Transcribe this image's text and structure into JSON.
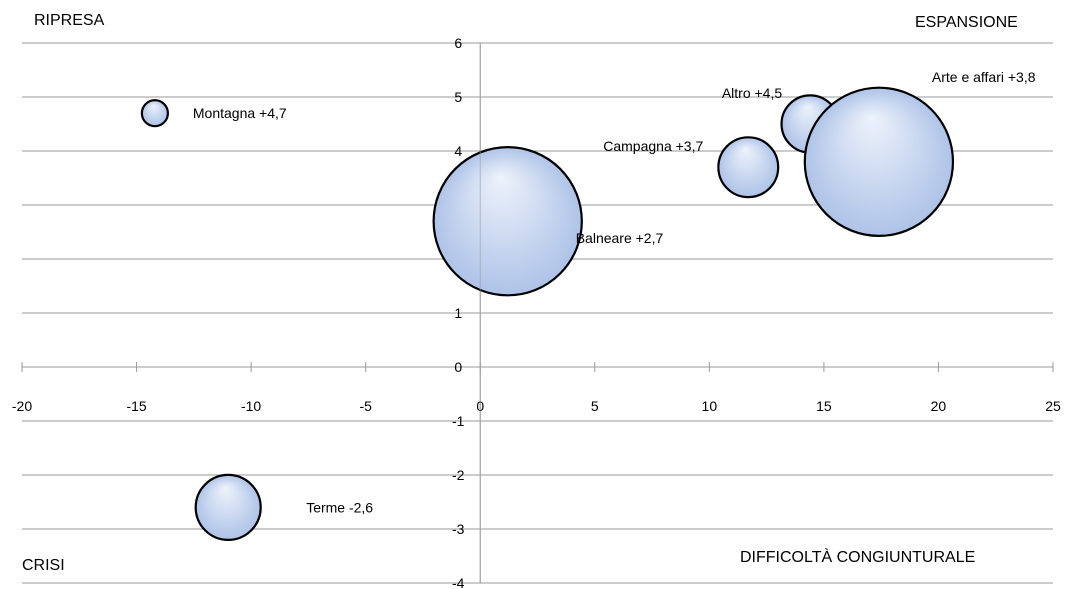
{
  "quadrants": {
    "top_left": "RIPRESA",
    "top_right": "ESPANSIONE",
    "bottom_left": "CRISI",
    "bottom_right": "DIFFICOLTÀ CONGIUNTURALE"
  },
  "colors": {
    "bubble_fill_light": "#eef3fb",
    "bubble_fill_dark": "#aec3e8",
    "bubble_stroke": "#000000",
    "grid": "#9a9a9a",
    "axis": "#9a9a9a"
  },
  "chart_data": {
    "type": "bubble",
    "title": "",
    "xlabel": "",
    "ylabel": "",
    "xlim": [
      -20,
      25
    ],
    "ylim": [
      -4,
      6
    ],
    "x_ticks": [
      -20,
      -15,
      -10,
      -5,
      0,
      5,
      10,
      15,
      20,
      25
    ],
    "y_ticks": [
      -4,
      -3,
      -2,
      -1,
      0,
      1,
      2,
      3,
      4,
      5,
      6
    ],
    "grid": "horizontal",
    "series": [
      {
        "points": [
          {
            "label": "Montagna +4,7",
            "x": -14.2,
            "y": 4.7,
            "size": 1.0
          },
          {
            "label": "Terme -2,6",
            "x": -11.0,
            "y": -2.6,
            "size": 2.5
          },
          {
            "label": "Balneare +2,7",
            "x": 1.2,
            "y": 2.7,
            "size": 5.7
          },
          {
            "label": "Campagna +3,7",
            "x": 11.7,
            "y": 3.7,
            "size": 2.3
          },
          {
            "label": "Altro  +4,5",
            "x": 14.4,
            "y": 4.5,
            "size": 2.2
          },
          {
            "label": "Arte e affari +3,8",
            "x": 17.4,
            "y": 3.8,
            "size": 5.7
          }
        ]
      }
    ]
  }
}
